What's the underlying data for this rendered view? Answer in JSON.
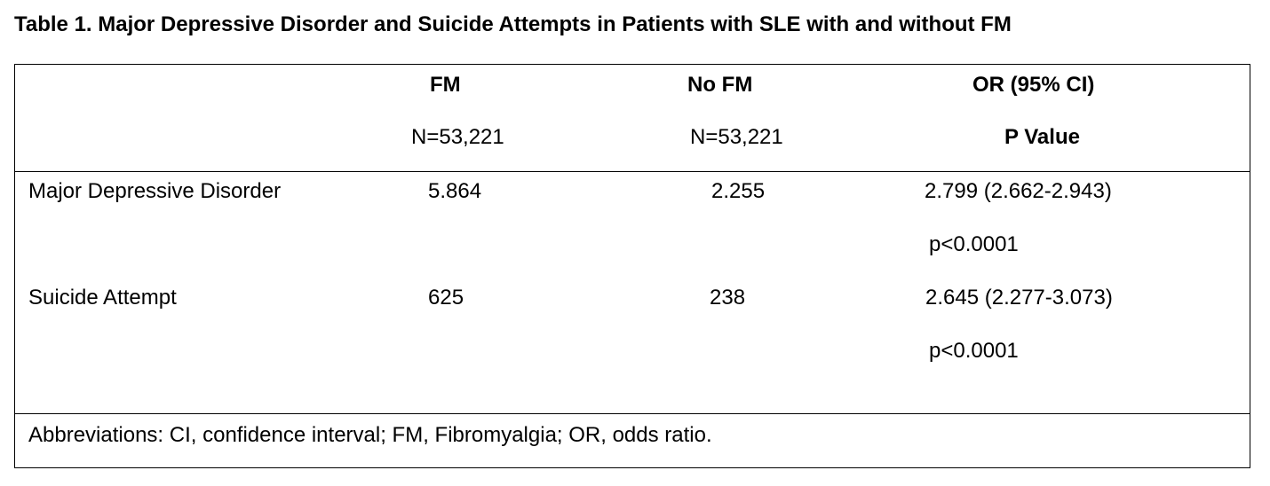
{
  "title": "Table 1. Major Depressive Disorder and Suicide Attempts in Patients with SLE with and without FM",
  "header": {
    "fm_label": "FM",
    "fm_n": "N=53,221",
    "nofm_label": "No FM",
    "nofm_n": "N=53,221",
    "or_label": "OR (95% CI)",
    "p_label": "P Value"
  },
  "rows": [
    {
      "label": "Major Depressive Disorder",
      "fm": "5.864",
      "nofm": "2.255",
      "or": "2.799 (2.662-2.943)",
      "p": "p<0.0001"
    },
    {
      "label": "Suicide Attempt",
      "fm": "625",
      "nofm": "238",
      "or": "2.645 (2.277-3.073)",
      "p": "p<0.0001"
    }
  ],
  "footer": "Abbreviations: CI, confidence interval; FM, Fibromyalgia; OR, odds ratio."
}
